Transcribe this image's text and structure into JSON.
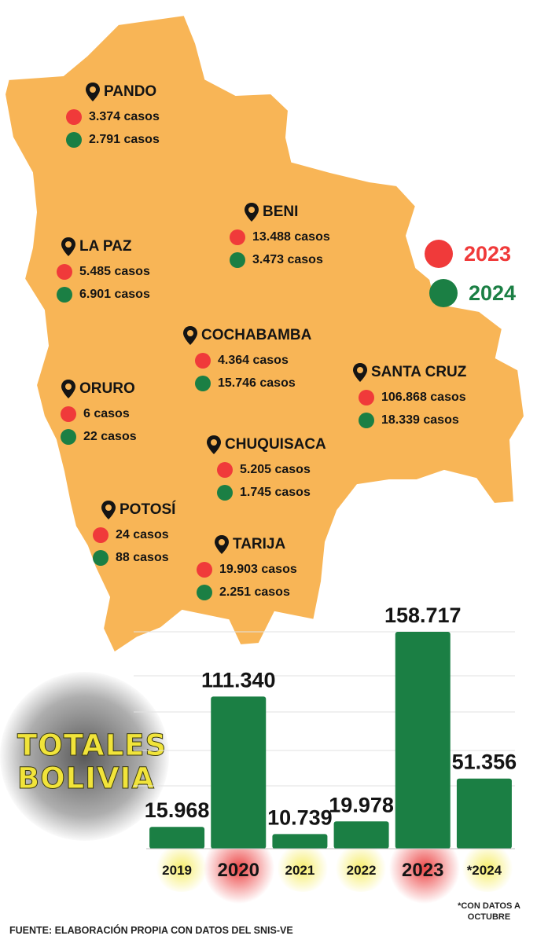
{
  "legend": [
    {
      "year": "2023",
      "color": "#f03a3a"
    },
    {
      "year": "2024",
      "color": "#1b7f44"
    }
  ],
  "departments": [
    {
      "name": "PANDO",
      "c2023": "3.374 casos",
      "c2024": "2.791 casos"
    },
    {
      "name": "BENI",
      "c2023": "13.488 casos",
      "c2024": "3.473 casos"
    },
    {
      "name": "LA PAZ",
      "c2023": "5.485 casos",
      "c2024": "6.901 casos"
    },
    {
      "name": "COCHABAMBA",
      "c2023": "4.364 casos",
      "c2024": "15.746 casos"
    },
    {
      "name": "SANTA CRUZ",
      "c2023": "106.868 casos",
      "c2024": "18.339 casos"
    },
    {
      "name": "ORURO",
      "c2023": "6 casos",
      "c2024": "22 casos"
    },
    {
      "name": "CHUQUISACA",
      "c2023": "5.205 casos",
      "c2024": "1.745 casos"
    },
    {
      "name": "POTOSÍ",
      "c2023": "24 casos",
      "c2024": "88 casos"
    },
    {
      "name": "TARIJA",
      "c2023": "19.903 casos",
      "c2024": "2.251 casos"
    }
  ],
  "totals_title": [
    "TOTALES",
    "BOLIVIA"
  ],
  "chart_data": {
    "type": "bar",
    "categories": [
      "2019",
      "2020",
      "2021",
      "2022",
      "2023",
      "*2024"
    ],
    "values": [
      15968,
      111340,
      10739,
      19978,
      158717,
      51356
    ],
    "value_labels": [
      "15.968",
      "111.340",
      "10.739",
      "19.978",
      "158.717",
      "51.356"
    ],
    "title": "",
    "xlabel": "",
    "ylabel": "",
    "ylim": [
      0,
      158717
    ],
    "bar_color": "#1b7f44",
    "highlighted": [
      "2020",
      "2023"
    ],
    "grid": true
  },
  "note": "*CON DATOS A OCTUBRE",
  "source": "FUENTE: ELABORACIÓN PROPIA CON DATOS DEL SNIS-VE"
}
